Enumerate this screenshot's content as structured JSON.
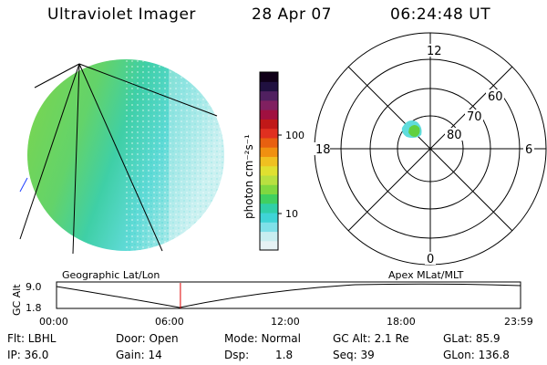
{
  "header": {
    "instrument": "Ultraviolet Imager",
    "date": "28 Apr 07",
    "time": "06:24:48 UT"
  },
  "colorbar": {
    "unit": "photon cm⁻²s⁻¹",
    "ticks": [
      "100",
      "10"
    ],
    "colors": [
      "#e6f2f4",
      "#c8eef0",
      "#7fe0e8",
      "#3fd4d6",
      "#30cfa8",
      "#40d060",
      "#80d840",
      "#b8e040",
      "#e0e030",
      "#f0c020",
      "#f09010",
      "#e86010",
      "#e03020",
      "#c01818",
      "#a01040",
      "#802060",
      "#502060",
      "#201040",
      "#100018"
    ]
  },
  "polar": {
    "mlt_labels": {
      "top": "12",
      "left": "18",
      "right": "6",
      "bottom": "0"
    },
    "lat_labels": [
      "60",
      "70",
      "80"
    ],
    "colors": {
      "blob_cyan": "#5fdcdc",
      "blob_green": "#60d040"
    }
  },
  "timeline": {
    "left_title": "Geographic Lat/Lon",
    "right_title": "Apex MLat/MLT",
    "axis_label": "GC Alt",
    "y_ticks": [
      "9.0",
      "1.8"
    ],
    "x_ticks": [
      "00:00",
      "06:00",
      "12:00",
      "18:00",
      "23:59"
    ],
    "marker_color": "#e00000",
    "marker_fraction": 0.267
  },
  "footer": {
    "flt": "Flt: LBHL",
    "ip": "IP: 36.0",
    "door": "Door: Open",
    "gain": "Gain: 14",
    "mode": "Mode: Normal",
    "dsp_label": "Dsp:",
    "dsp_value": "1.8",
    "gcalt": "GC Alt: 2.1 Re",
    "seq": "Seq: 39",
    "glat": "GLat: 85.9",
    "glon": "GLon: 136.8"
  }
}
